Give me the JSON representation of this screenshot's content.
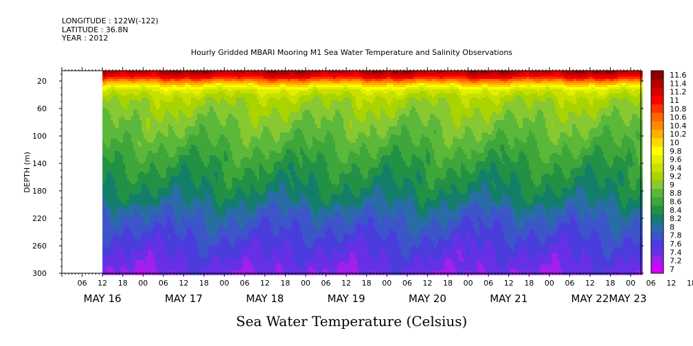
{
  "header": {
    "longitude": "LONGITUDE : 122W(-122)",
    "latitude": "LATITUDE : 36.8N",
    "year": "YEAR : 2012"
  },
  "chart_data": {
    "type": "heatmap",
    "title": "Hourly Gridded MBARI Mooring M1 Sea Water Temperature and Salinity Observations",
    "xlabel": "Sea Water Temperature (Celsius)",
    "ylabel": "DEPTH (m)",
    "ylim": [
      300,
      5
    ],
    "y_ticks": [
      20,
      60,
      100,
      140,
      180,
      220,
      260,
      300
    ],
    "x_hour_ticks": [
      "06",
      "12",
      "18",
      "00",
      "06",
      "12",
      "18",
      "00",
      "06",
      "12",
      "18",
      "00",
      "06",
      "12",
      "18",
      "00",
      "06",
      "12",
      "18",
      "00",
      "06",
      "12",
      "18",
      "00",
      "06",
      "12",
      "18",
      "00",
      "06",
      "12",
      "18",
      "00"
    ],
    "x_day_labels": [
      "MAY 16",
      "MAY 17",
      "MAY 18",
      "MAY 19",
      "MAY 20",
      "MAY 21",
      "MAY 22",
      "MAY 23"
    ],
    "data_start": "MAY 16 12:00",
    "data_end": "MAY 23 06:00",
    "colorbar_levels": [
      "11.6",
      "11.4",
      "11.2",
      "11",
      "10.8",
      "10.6",
      "10.4",
      "10.2",
      "10",
      "9.8",
      "9.6",
      "9.4",
      "9.2",
      "9",
      "8.8",
      "8.6",
      "8.4",
      "8.2",
      "8",
      "7.8",
      "7.6",
      "7.4",
      "7.2",
      "7"
    ],
    "colorbar_colors": [
      "#8b0000",
      "#b20000",
      "#d80000",
      "#ff0000",
      "#ff3300",
      "#ff6600",
      "#ff8a00",
      "#ffb000",
      "#ffd700",
      "#ffff00",
      "#e0f000",
      "#c8e000",
      "#aad400",
      "#88c830",
      "#5cb83a",
      "#3fa63a",
      "#229146",
      "#137f6a",
      "#2a6da6",
      "#3c55c8",
      "#4a3ddc",
      "#6830e6",
      "#a120ea",
      "#d500ff"
    ],
    "depth_profile": [
      {
        "depth": 5,
        "temp": 11.5
      },
      {
        "depth": 12,
        "temp": 11.2
      },
      {
        "depth": 18,
        "temp": 10.6
      },
      {
        "depth": 25,
        "temp": 10.0
      },
      {
        "depth": 32,
        "temp": 9.6
      },
      {
        "depth": 45,
        "temp": 9.3
      },
      {
        "depth": 70,
        "temp": 9.1
      },
      {
        "depth": 100,
        "temp": 8.9
      },
      {
        "depth": 140,
        "temp": 8.6
      },
      {
        "depth": 180,
        "temp": 8.35
      },
      {
        "depth": 220,
        "temp": 8.0
      },
      {
        "depth": 260,
        "temp": 7.7
      },
      {
        "depth": 300,
        "temp": 7.45
      }
    ]
  }
}
